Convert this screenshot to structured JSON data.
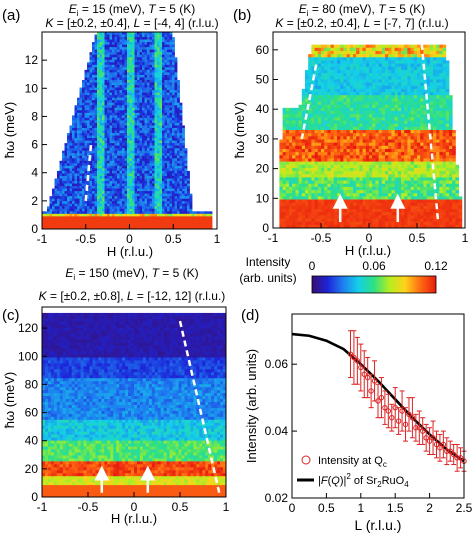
{
  "chart_data": [
    {
      "panel": "(a)",
      "type": "heatmap",
      "header": [
        "E",
        "i",
        " = 15 (meV), ",
        "T",
        " = 5 (K)"
      ],
      "header2": [
        "K",
        " = [±0.2, ±0.4], ",
        "L",
        " = [-4, 4] (r.l.u.)"
      ],
      "xlabel": "H (r.l.u.)",
      "ylabel": "ħω (meV)",
      "xlim": [
        -1,
        1
      ],
      "ylim": [
        0,
        14
      ],
      "xticks": [
        "-1",
        "-0.5",
        "0",
        "0.5",
        "1"
      ],
      "yticks": [
        "0",
        "2",
        "4",
        "6",
        "8",
        "10",
        "12"
      ],
      "dispersion": {
        "x": [
          -0.5,
          -0.44
        ],
        "y": [
          2,
          6
        ]
      }
    },
    {
      "panel": "(b)",
      "type": "heatmap",
      "header": [
        "E",
        "i",
        " = 80 (meV), ",
        "T",
        " = 5 (K)"
      ],
      "header2": [
        "K",
        " = [±0.2, ±0.4], ",
        "L",
        " = [-7, 7] (r.l.u.)"
      ],
      "xlabel": "H (r.l.u.)",
      "ylabel": "ħω (meV)",
      "xlim": [
        -1,
        1
      ],
      "ylim": [
        0,
        66
      ],
      "xticks": [
        "-1",
        "-0.5",
        "0",
        "0.5",
        "1"
      ],
      "yticks": [
        "0",
        "10",
        "20",
        "30",
        "40",
        "50",
        "60"
      ],
      "dispersion": {
        "x": [
          0.55,
          0.72
        ],
        "y": [
          62,
          2
        ]
      }
    },
    {
      "panel": "(c)",
      "type": "heatmap",
      "header": [
        "E",
        "i",
        " = 150 (meV), ",
        "T",
        " = 5 (K)"
      ],
      "header2": [
        "K",
        " = [±0.2, ±0.8], ",
        "L",
        " = [-12, 12] (r.l.u.)"
      ],
      "xlabel": "H (r.l.u.)",
      "ylabel": "ħω (meV)",
      "xlim": [
        -1,
        1
      ],
      "ylim": [
        0,
        135
      ],
      "xticks": [
        "-1",
        "-0.5",
        "0",
        "0.5",
        "1"
      ],
      "yticks": [
        "0",
        "20",
        "40",
        "60",
        "80",
        "100",
        "120"
      ],
      "dispersion": {
        "x": [
          0.5,
          0.93
        ],
        "y": [
          125,
          2
        ]
      }
    },
    {
      "panel": "(d)",
      "type": "scatter",
      "xlabel": "L (r.l.u.)",
      "ylabel": "Intensity (arb. units)",
      "xlim": [
        0,
        2.5
      ],
      "ylim": [
        0.02,
        0.075
      ],
      "xticks": [
        "0",
        "0.5",
        "1",
        "1.5",
        "2",
        "2.5"
      ],
      "yticks": [
        "0.02",
        "0.04",
        "0.06"
      ],
      "series": [
        {
          "name": "Intensity at Q",
          "name_sub": "c",
          "x": [
            0.85,
            0.9,
            0.95,
            1.0,
            1.05,
            1.1,
            1.15,
            1.2,
            1.25,
            1.3,
            1.35,
            1.4,
            1.45,
            1.5,
            1.55,
            1.6,
            1.65,
            1.7,
            1.75,
            1.8,
            1.85,
            1.9,
            1.95,
            2.0,
            2.05,
            2.1,
            2.15,
            2.2,
            2.25,
            2.3,
            2.35,
            2.4,
            2.45,
            2.5
          ],
          "y": [
            0.063,
            0.062,
            0.061,
            0.059,
            0.057,
            0.056,
            0.052,
            0.055,
            0.049,
            0.05,
            0.047,
            0.046,
            0.044,
            0.047,
            0.043,
            0.046,
            0.042,
            0.045,
            0.044,
            0.041,
            0.041,
            0.04,
            0.038,
            0.037,
            0.038,
            0.036,
            0.035,
            0.036,
            0.034,
            0.034,
            0.033,
            0.032,
            0.032,
            0.031
          ],
          "err": [
            0.007,
            0.008,
            0.007,
            0.007,
            0.007,
            0.006,
            0.005,
            0.006,
            0.005,
            0.006,
            0.005,
            0.005,
            0.004,
            0.006,
            0.004,
            0.006,
            0.005,
            0.005,
            0.006,
            0.004,
            0.005,
            0.004,
            0.004,
            0.004,
            0.005,
            0.004,
            0.004,
            0.004,
            0.004,
            0.003,
            0.003,
            0.004,
            0.003,
            0.003
          ]
        },
        {
          "name_parts": [
            "|",
            "F",
            "(",
            "Q",
            ")|",
            "2",
            " of Sr",
            "2",
            "RuO",
            "4"
          ],
          "x": [
            0,
            0.25,
            0.5,
            0.75,
            1.0,
            1.25,
            1.5,
            1.75,
            2.0,
            2.25,
            2.5
          ],
          "y": [
            0.069,
            0.0685,
            0.067,
            0.0645,
            0.06,
            0.055,
            0.0495,
            0.044,
            0.039,
            0.0345,
            0.031
          ]
        }
      ],
      "legend_position": "bottom-left"
    }
  ],
  "colorbar": {
    "title": "Intensity",
    "subtitle": "(arb. units)",
    "ticks": [
      "0",
      "0.06",
      "0.12"
    ],
    "range": [
      0,
      0.12
    ],
    "colors": [
      "#3a0f72",
      "#1d24d8",
      "#1e7ef0",
      "#14d0e8",
      "#2ee082",
      "#b5ee1f",
      "#ffd21a",
      "#ff6a12",
      "#e81b0e"
    ]
  },
  "panel_b_annotations": {
    "arrows_at_H": [
      -0.3,
      0.3
    ]
  },
  "panel_c_annotations": {
    "arrows_at_H": [
      -0.35,
      0.15
    ]
  }
}
